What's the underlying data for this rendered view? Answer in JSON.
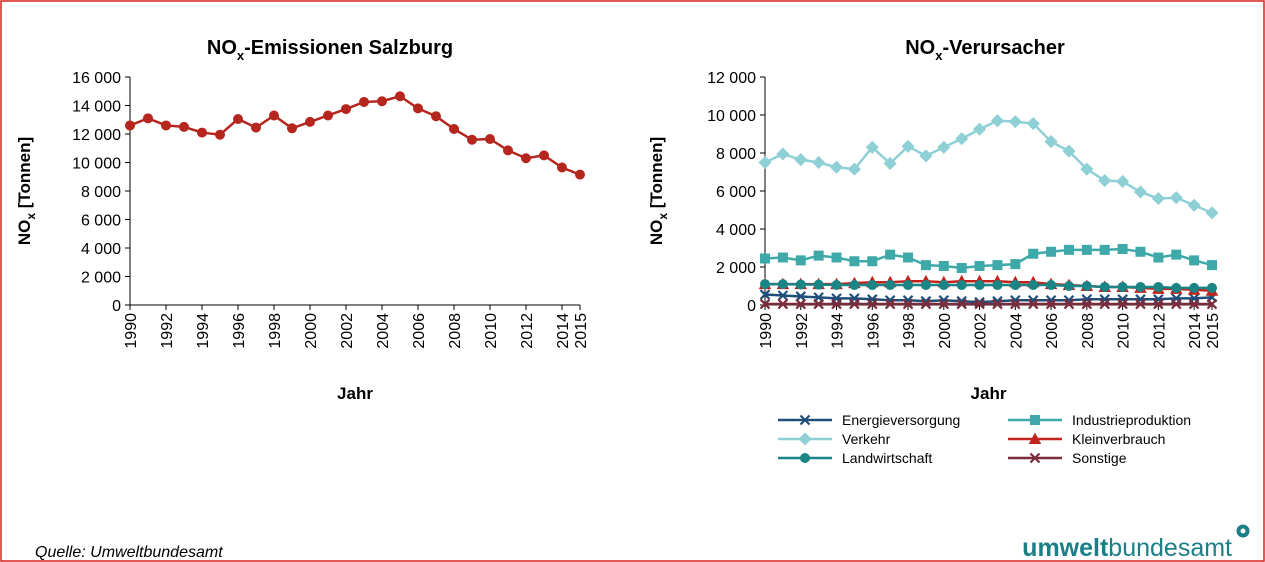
{
  "chart_data": [
    {
      "type": "line",
      "title": [
        "NO",
        "x",
        "-Emissionen Salzburg"
      ],
      "ylabel": [
        "NO",
        "x",
        " [Tonnen]"
      ],
      "xlabel": "Jahr",
      "x": [
        1990,
        1991,
        1992,
        1993,
        1994,
        1995,
        1996,
        1997,
        1998,
        1999,
        2000,
        2001,
        2002,
        2003,
        2004,
        2005,
        2006,
        2007,
        2008,
        2009,
        2010,
        2011,
        2012,
        2013,
        2014,
        2015
      ],
      "values": [
        12600,
        13100,
        12600,
        12500,
        12100,
        11950,
        13050,
        12450,
        13300,
        12400,
        12850,
        13300,
        13750,
        14250,
        14300,
        14650,
        13800,
        13250,
        12350,
        11600,
        11650,
        10850,
        10300,
        10500,
        9650,
        9150
      ],
      "color": "#b5261e",
      "marker": "circle",
      "xlim": [
        1990,
        2015
      ],
      "xticks": [
        1990,
        1992,
        1994,
        1996,
        1998,
        2000,
        2002,
        2004,
        2006,
        2008,
        2010,
        2012,
        2014,
        2015
      ],
      "ylim": [
        0,
        16000
      ],
      "yticks": [
        0,
        {
          "value": 2000,
          "label": "2 000"
        },
        {
          "value": 4000,
          "label": "4 000"
        },
        {
          "value": 6000,
          "label": "6 000"
        },
        {
          "value": 8000,
          "label": "8 000"
        },
        {
          "value": 10000,
          "label": "10 000"
        },
        {
          "value": 12000,
          "label": "12 000"
        },
        {
          "value": 14000,
          "label": "14 000"
        },
        {
          "value": 16000,
          "label": "16 000"
        }
      ],
      "grid": false
    },
    {
      "type": "line",
      "title": [
        "NO",
        "x",
        "-Verursacher"
      ],
      "ylabel": [
        "NO",
        "x",
        " [Tonnen]"
      ],
      "xlabel": "Jahr",
      "x": [
        1990,
        1991,
        1992,
        1993,
        1994,
        1995,
        1996,
        1997,
        1998,
        1999,
        2000,
        2001,
        2002,
        2003,
        2004,
        2005,
        2006,
        2007,
        2008,
        2009,
        2010,
        2011,
        2012,
        2013,
        2014,
        2015
      ],
      "series": [
        {
          "name": "Energieversorgung",
          "color": "#1f4e79",
          "marker": "x",
          "values": [
            550,
            500,
            450,
            400,
            350,
            350,
            300,
            250,
            250,
            200,
            250,
            200,
            150,
            200,
            250,
            250,
            250,
            250,
            300,
            300,
            300,
            300,
            300,
            350,
            350,
            400
          ]
        },
        {
          "name": "Industrieproduktion",
          "color": "#3fa9a9",
          "marker": "square",
          "values": [
            2450,
            2500,
            2350,
            2600,
            2500,
            2300,
            2300,
            2650,
            2500,
            2100,
            2050,
            1950,
            2050,
            2100,
            2150,
            2700,
            2800,
            2900,
            2900,
            2900,
            2950,
            2800,
            2500,
            2650,
            2350,
            2100
          ]
        },
        {
          "name": "Verkehr",
          "color": "#8fcfd6",
          "marker": "diamond",
          "values": [
            7500,
            7950,
            7650,
            7500,
            7250,
            7150,
            8300,
            7450,
            8350,
            7850,
            8300,
            8750,
            9250,
            9700,
            9650,
            9550,
            8600,
            8100,
            7150,
            6550,
            6500,
            5950,
            5600,
            5650,
            5250,
            4850
          ]
        },
        {
          "name": "Kleinverbrauch",
          "color": "#c0241c",
          "marker": "triangle",
          "values": [
            1100,
            1100,
            1100,
            1100,
            1100,
            1150,
            1200,
            1200,
            1250,
            1250,
            1200,
            1250,
            1250,
            1250,
            1200,
            1200,
            1100,
            1050,
            1000,
            950,
            950,
            900,
            850,
            850,
            800,
            750
          ]
        },
        {
          "name": "Landwirtschaft",
          "color": "#1b8585",
          "marker": "circle",
          "values": [
            1100,
            1100,
            1080,
            1070,
            1050,
            1050,
            1050,
            1050,
            1050,
            1050,
            1050,
            1050,
            1050,
            1050,
            1050,
            1050,
            1050,
            1000,
            1000,
            950,
            950,
            950,
            950,
            900,
            900,
            900
          ]
        },
        {
          "name": "Sonstige",
          "color": "#7b2c3c",
          "marker": "x",
          "values": [
            50,
            50,
            50,
            50,
            50,
            50,
            50,
            50,
            50,
            50,
            50,
            50,
            50,
            50,
            50,
            50,
            50,
            50,
            50,
            50,
            50,
            50,
            50,
            50,
            50,
            50
          ]
        }
      ],
      "xlim": [
        1990,
        2015
      ],
      "xticks": [
        1990,
        1992,
        1994,
        1996,
        1998,
        2000,
        2002,
        2004,
        2006,
        2008,
        2010,
        2012,
        2014,
        2015
      ],
      "ylim": [
        0,
        12000
      ],
      "yticks": [
        0,
        {
          "value": 2000,
          "label": "2 000"
        },
        {
          "value": 4000,
          "label": "4 000"
        },
        {
          "value": 6000,
          "label": "6 000"
        },
        {
          "value": 8000,
          "label": "8 000"
        },
        {
          "value": 10000,
          "label": "10 000"
        },
        {
          "value": 12000,
          "label": "12 000"
        }
      ],
      "grid": false,
      "legend": "bottom"
    }
  ],
  "footer": {
    "source": "Quelle: Umweltbundesamt",
    "logo": [
      "umwelt",
      "bundesamt"
    ]
  }
}
